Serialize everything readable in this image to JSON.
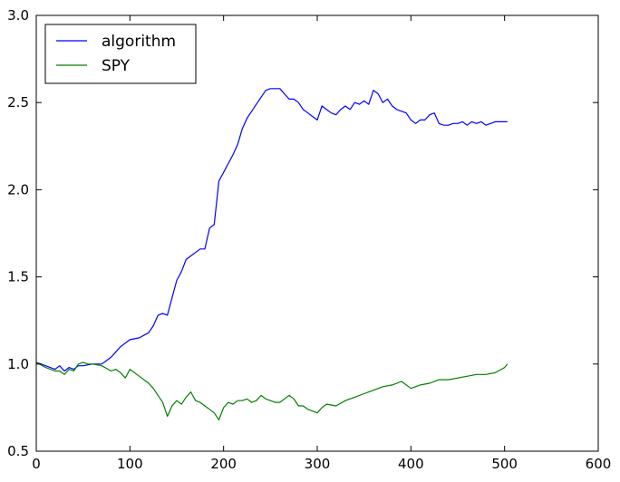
{
  "chart_data": {
    "type": "line",
    "title": "",
    "xlabel": "",
    "ylabel": "",
    "xlim": [
      0,
      600
    ],
    "ylim": [
      0.5,
      3.0
    ],
    "xticks": [
      0,
      100,
      200,
      300,
      400,
      500,
      600
    ],
    "yticks": [
      0.5,
      1.0,
      1.5,
      2.0,
      2.5,
      3.0
    ],
    "xtick_labels": [
      "0",
      "100",
      "200",
      "300",
      "400",
      "500",
      "600"
    ],
    "ytick_labels": [
      "0.5",
      "1.0",
      "1.5",
      "2.0",
      "2.5",
      "3.0"
    ],
    "grid": false,
    "legend_position": "top-left",
    "series": [
      {
        "name": "algorithm",
        "color": "#0000ff",
        "x": [
          0,
          10,
          20,
          25,
          30,
          35,
          40,
          45,
          50,
          60,
          70,
          75,
          80,
          90,
          100,
          110,
          120,
          125,
          130,
          135,
          140,
          145,
          150,
          155,
          160,
          165,
          170,
          175,
          180,
          185,
          190,
          195,
          200,
          205,
          210,
          215,
          220,
          225,
          230,
          235,
          240,
          245,
          250,
          255,
          260,
          265,
          270,
          275,
          280,
          285,
          290,
          295,
          300,
          305,
          310,
          315,
          320,
          325,
          330,
          335,
          340,
          345,
          350,
          355,
          360,
          365,
          370,
          375,
          380,
          385,
          390,
          395,
          400,
          405,
          410,
          415,
          420,
          425,
          430,
          435,
          440,
          445,
          450,
          455,
          460,
          465,
          470,
          475,
          480,
          485,
          490,
          495,
          500,
          503
        ],
        "y": [
          1.01,
          0.99,
          0.97,
          0.99,
          0.96,
          0.98,
          0.97,
          0.99,
          0.99,
          1.0,
          1.0,
          1.02,
          1.04,
          1.1,
          1.14,
          1.15,
          1.18,
          1.22,
          1.28,
          1.29,
          1.28,
          1.38,
          1.48,
          1.53,
          1.6,
          1.62,
          1.64,
          1.66,
          1.66,
          1.78,
          1.8,
          2.05,
          2.1,
          2.15,
          2.2,
          2.26,
          2.35,
          2.41,
          2.45,
          2.49,
          2.53,
          2.57,
          2.58,
          2.58,
          2.58,
          2.55,
          2.52,
          2.52,
          2.5,
          2.46,
          2.44,
          2.42,
          2.4,
          2.48,
          2.46,
          2.44,
          2.43,
          2.46,
          2.48,
          2.46,
          2.5,
          2.49,
          2.51,
          2.49,
          2.57,
          2.55,
          2.5,
          2.52,
          2.48,
          2.46,
          2.45,
          2.44,
          2.4,
          2.38,
          2.4,
          2.4,
          2.43,
          2.44,
          2.38,
          2.37,
          2.37,
          2.38,
          2.38,
          2.39,
          2.37,
          2.39,
          2.38,
          2.39,
          2.37,
          2.38,
          2.39,
          2.39,
          2.39,
          2.39
        ]
      },
      {
        "name": "SPY",
        "color": "#008000",
        "x": [
          0,
          10,
          20,
          25,
          30,
          35,
          40,
          45,
          50,
          55,
          60,
          70,
          80,
          85,
          90,
          95,
          100,
          110,
          120,
          125,
          130,
          135,
          140,
          145,
          150,
          155,
          160,
          165,
          170,
          175,
          180,
          185,
          190,
          195,
          200,
          205,
          210,
          215,
          220,
          225,
          230,
          235,
          240,
          245,
          250,
          255,
          260,
          265,
          270,
          275,
          280,
          285,
          290,
          295,
          300,
          305,
          310,
          320,
          330,
          340,
          350,
          360,
          370,
          380,
          390,
          400,
          410,
          420,
          430,
          440,
          450,
          460,
          470,
          480,
          490,
          500,
          503
        ],
        "y": [
          1.01,
          0.98,
          0.96,
          0.96,
          0.94,
          0.97,
          0.96,
          1.0,
          1.01,
          1.0,
          1.0,
          0.99,
          0.96,
          0.97,
          0.95,
          0.92,
          0.97,
          0.93,
          0.89,
          0.86,
          0.82,
          0.78,
          0.7,
          0.76,
          0.79,
          0.77,
          0.81,
          0.84,
          0.79,
          0.78,
          0.76,
          0.74,
          0.72,
          0.68,
          0.75,
          0.78,
          0.77,
          0.79,
          0.79,
          0.8,
          0.78,
          0.79,
          0.82,
          0.8,
          0.79,
          0.78,
          0.78,
          0.8,
          0.82,
          0.8,
          0.76,
          0.76,
          0.74,
          0.73,
          0.72,
          0.75,
          0.77,
          0.76,
          0.79,
          0.81,
          0.83,
          0.85,
          0.87,
          0.88,
          0.9,
          0.86,
          0.88,
          0.89,
          0.91,
          0.91,
          0.92,
          0.93,
          0.94,
          0.94,
          0.95,
          0.98,
          1.0
        ]
      }
    ]
  }
}
